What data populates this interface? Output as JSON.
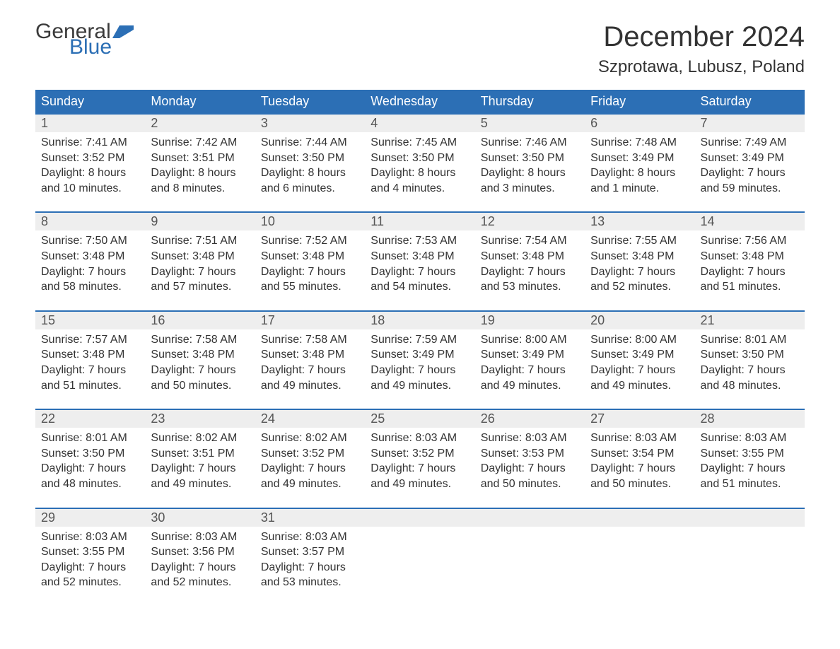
{
  "logo": {
    "word1": "General",
    "word2": "Blue",
    "flag_color": "#2c6fb5",
    "word1_color": "#3a3a3a"
  },
  "title": "December 2024",
  "location": "Szprotawa, Lubusz, Poland",
  "dayheaders": [
    "Sunday",
    "Monday",
    "Tuesday",
    "Wednesday",
    "Thursday",
    "Friday",
    "Saturday"
  ],
  "colors": {
    "header_bg": "#2c6fb5",
    "header_text": "#ffffff",
    "datenum_bg": "#eeeeee",
    "row_border": "#2c6fb5",
    "body_text": "#333333"
  },
  "weeks": [
    [
      {
        "n": "1",
        "sunrise": "7:41 AM",
        "sunset": "3:52 PM",
        "dl1": "8 hours",
        "dl2": "and 10 minutes."
      },
      {
        "n": "2",
        "sunrise": "7:42 AM",
        "sunset": "3:51 PM",
        "dl1": "8 hours",
        "dl2": "and 8 minutes."
      },
      {
        "n": "3",
        "sunrise": "7:44 AM",
        "sunset": "3:50 PM",
        "dl1": "8 hours",
        "dl2": "and 6 minutes."
      },
      {
        "n": "4",
        "sunrise": "7:45 AM",
        "sunset": "3:50 PM",
        "dl1": "8 hours",
        "dl2": "and 4 minutes."
      },
      {
        "n": "5",
        "sunrise": "7:46 AM",
        "sunset": "3:50 PM",
        "dl1": "8 hours",
        "dl2": "and 3 minutes."
      },
      {
        "n": "6",
        "sunrise": "7:48 AM",
        "sunset": "3:49 PM",
        "dl1": "8 hours",
        "dl2": "and 1 minute."
      },
      {
        "n": "7",
        "sunrise": "7:49 AM",
        "sunset": "3:49 PM",
        "dl1": "7 hours",
        "dl2": "and 59 minutes."
      }
    ],
    [
      {
        "n": "8",
        "sunrise": "7:50 AM",
        "sunset": "3:48 PM",
        "dl1": "7 hours",
        "dl2": "and 58 minutes."
      },
      {
        "n": "9",
        "sunrise": "7:51 AM",
        "sunset": "3:48 PM",
        "dl1": "7 hours",
        "dl2": "and 57 minutes."
      },
      {
        "n": "10",
        "sunrise": "7:52 AM",
        "sunset": "3:48 PM",
        "dl1": "7 hours",
        "dl2": "and 55 minutes."
      },
      {
        "n": "11",
        "sunrise": "7:53 AM",
        "sunset": "3:48 PM",
        "dl1": "7 hours",
        "dl2": "and 54 minutes."
      },
      {
        "n": "12",
        "sunrise": "7:54 AM",
        "sunset": "3:48 PM",
        "dl1": "7 hours",
        "dl2": "and 53 minutes."
      },
      {
        "n": "13",
        "sunrise": "7:55 AM",
        "sunset": "3:48 PM",
        "dl1": "7 hours",
        "dl2": "and 52 minutes."
      },
      {
        "n": "14",
        "sunrise": "7:56 AM",
        "sunset": "3:48 PM",
        "dl1": "7 hours",
        "dl2": "and 51 minutes."
      }
    ],
    [
      {
        "n": "15",
        "sunrise": "7:57 AM",
        "sunset": "3:48 PM",
        "dl1": "7 hours",
        "dl2": "and 51 minutes."
      },
      {
        "n": "16",
        "sunrise": "7:58 AM",
        "sunset": "3:48 PM",
        "dl1": "7 hours",
        "dl2": "and 50 minutes."
      },
      {
        "n": "17",
        "sunrise": "7:58 AM",
        "sunset": "3:48 PM",
        "dl1": "7 hours",
        "dl2": "and 49 minutes."
      },
      {
        "n": "18",
        "sunrise": "7:59 AM",
        "sunset": "3:49 PM",
        "dl1": "7 hours",
        "dl2": "and 49 minutes."
      },
      {
        "n": "19",
        "sunrise": "8:00 AM",
        "sunset": "3:49 PM",
        "dl1": "7 hours",
        "dl2": "and 49 minutes."
      },
      {
        "n": "20",
        "sunrise": "8:00 AM",
        "sunset": "3:49 PM",
        "dl1": "7 hours",
        "dl2": "and 49 minutes."
      },
      {
        "n": "21",
        "sunrise": "8:01 AM",
        "sunset": "3:50 PM",
        "dl1": "7 hours",
        "dl2": "and 48 minutes."
      }
    ],
    [
      {
        "n": "22",
        "sunrise": "8:01 AM",
        "sunset": "3:50 PM",
        "dl1": "7 hours",
        "dl2": "and 48 minutes."
      },
      {
        "n": "23",
        "sunrise": "8:02 AM",
        "sunset": "3:51 PM",
        "dl1": "7 hours",
        "dl2": "and 49 minutes."
      },
      {
        "n": "24",
        "sunrise": "8:02 AM",
        "sunset": "3:52 PM",
        "dl1": "7 hours",
        "dl2": "and 49 minutes."
      },
      {
        "n": "25",
        "sunrise": "8:03 AM",
        "sunset": "3:52 PM",
        "dl1": "7 hours",
        "dl2": "and 49 minutes."
      },
      {
        "n": "26",
        "sunrise": "8:03 AM",
        "sunset": "3:53 PM",
        "dl1": "7 hours",
        "dl2": "and 50 minutes."
      },
      {
        "n": "27",
        "sunrise": "8:03 AM",
        "sunset": "3:54 PM",
        "dl1": "7 hours",
        "dl2": "and 50 minutes."
      },
      {
        "n": "28",
        "sunrise": "8:03 AM",
        "sunset": "3:55 PM",
        "dl1": "7 hours",
        "dl2": "and 51 minutes."
      }
    ],
    [
      {
        "n": "29",
        "sunrise": "8:03 AM",
        "sunset": "3:55 PM",
        "dl1": "7 hours",
        "dl2": "and 52 minutes."
      },
      {
        "n": "30",
        "sunrise": "8:03 AM",
        "sunset": "3:56 PM",
        "dl1": "7 hours",
        "dl2": "and 52 minutes."
      },
      {
        "n": "31",
        "sunrise": "8:03 AM",
        "sunset": "3:57 PM",
        "dl1": "7 hours",
        "dl2": "and 53 minutes."
      },
      null,
      null,
      null,
      null
    ]
  ],
  "labels": {
    "sunrise": "Sunrise: ",
    "sunset": "Sunset: ",
    "daylight": "Daylight: "
  }
}
